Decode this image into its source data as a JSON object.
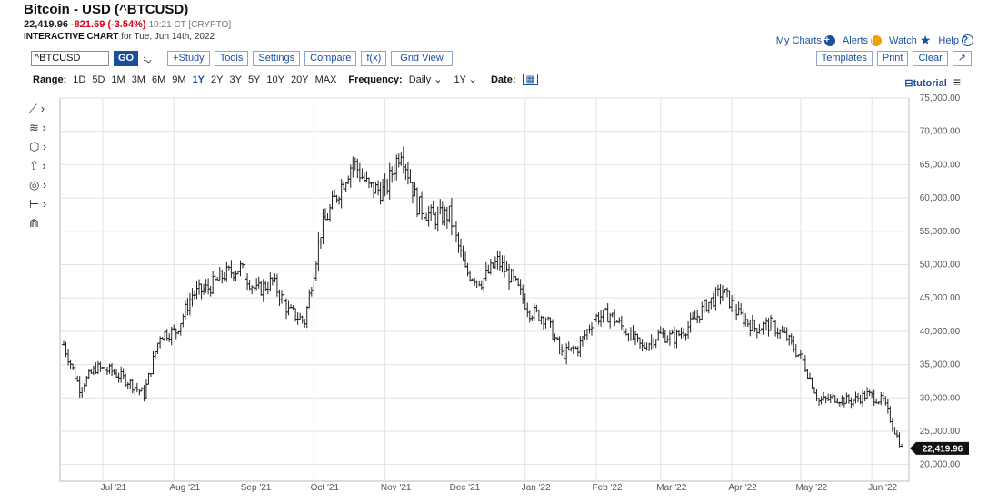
{
  "header": {
    "title": "Bitcoin - USD (^BTCUSD)",
    "price": "22,419.96",
    "change": "-821.69 (-3.54%)",
    "time": "10:21 CT [CRYPTO]",
    "subtitle_bold": "INTERACTIVE CHART",
    "subtitle_rest": "for Tue, Jun 14th, 2022"
  },
  "top_links": {
    "my_charts": "My Charts",
    "alerts": "Alerts",
    "watch": "Watch",
    "help": "Help"
  },
  "toolbar": {
    "symbol": "^BTCUSD",
    "go": "GO",
    "study": "+Study",
    "tools": "Tools",
    "settings": "Settings",
    "compare": "Compare",
    "fx": "f(x)",
    "grid": "Grid View",
    "templates": "Templates",
    "print": "Print",
    "clear": "Clear"
  },
  "range_bar": {
    "label": "Range:",
    "options": [
      "1D",
      "5D",
      "1M",
      "3M",
      "6M",
      "9M",
      "1Y",
      "2Y",
      "3Y",
      "5Y",
      "10Y",
      "20Y",
      "MAX"
    ],
    "active": "1Y",
    "freq_label": "Frequency:",
    "freq": "Daily",
    "period": "1Y",
    "date_label": "Date:",
    "tutorial": "tutorial"
  },
  "colors": {
    "accent": "#1a4fa0",
    "down": "#d8001c",
    "bar": "#222222",
    "grid": "#e2e2e2"
  },
  "chart_data": {
    "type": "ohlc-bar",
    "ylim": [
      17500,
      75000
    ],
    "yticks": [
      20000,
      25000,
      30000,
      35000,
      40000,
      45000,
      50000,
      55000,
      60000,
      65000,
      70000,
      75000
    ],
    "ytick_labels": [
      "20,000.00",
      "25,000.00",
      "30,000.00",
      "35,000.00",
      "40,000.00",
      "45,000.00",
      "50,000.00",
      "55,000.00",
      "60,000.00",
      "65,000.00",
      "70,000.00",
      "75,000.00"
    ],
    "x_start": "2021-06-14",
    "x_end": "2022-06-14",
    "xtick_labels": [
      "Jul '21",
      "Aug '21",
      "Sep '21",
      "Oct '21",
      "Nov '21",
      "Dec '21",
      "Jan '22",
      "Feb '22",
      "Mar '22",
      "Apr '22",
      "May '22",
      "Jun '22"
    ],
    "xtick_dates": [
      "2021-07-01",
      "2021-08-01",
      "2021-09-01",
      "2021-10-01",
      "2021-11-01",
      "2021-12-01",
      "2022-01-01",
      "2022-02-01",
      "2022-03-01",
      "2022-04-01",
      "2022-05-01",
      "2022-06-01"
    ],
    "last_price_label": "22,419.96",
    "last_price": 22419.96,
    "closes": [
      {
        "d": "2021-06-14",
        "c": 38000
      },
      {
        "d": "2021-06-21",
        "c": 31500
      },
      {
        "d": "2021-06-28",
        "c": 34500
      },
      {
        "d": "2021-07-05",
        "c": 34000
      },
      {
        "d": "2021-07-12",
        "c": 32500
      },
      {
        "d": "2021-07-19",
        "c": 30500
      },
      {
        "d": "2021-07-26",
        "c": 39500
      },
      {
        "d": "2021-08-02",
        "c": 40000
      },
      {
        "d": "2021-08-09",
        "c": 45500
      },
      {
        "d": "2021-08-16",
        "c": 46500
      },
      {
        "d": "2021-08-23",
        "c": 48500
      },
      {
        "d": "2021-08-30",
        "c": 49500
      },
      {
        "d": "2021-09-06",
        "c": 46000
      },
      {
        "d": "2021-09-13",
        "c": 47500
      },
      {
        "d": "2021-09-20",
        "c": 43000
      },
      {
        "d": "2021-09-27",
        "c": 41500
      },
      {
        "d": "2021-10-04",
        "c": 55000
      },
      {
        "d": "2021-10-11",
        "c": 60500
      },
      {
        "d": "2021-10-18",
        "c": 65500
      },
      {
        "d": "2021-10-25",
        "c": 61500
      },
      {
        "d": "2021-11-01",
        "c": 61000
      },
      {
        "d": "2021-11-08",
        "c": 67500
      },
      {
        "d": "2021-11-15",
        "c": 59000
      },
      {
        "d": "2021-11-22",
        "c": 57000
      },
      {
        "d": "2021-11-29",
        "c": 57500
      },
      {
        "d": "2021-12-06",
        "c": 49000
      },
      {
        "d": "2021-12-13",
        "c": 47500
      },
      {
        "d": "2021-12-20",
        "c": 50500
      },
      {
        "d": "2021-12-27",
        "c": 47500
      },
      {
        "d": "2022-01-03",
        "c": 43000
      },
      {
        "d": "2022-01-10",
        "c": 42000
      },
      {
        "d": "2022-01-17",
        "c": 36500
      },
      {
        "d": "2022-01-24",
        "c": 37500
      },
      {
        "d": "2022-01-31",
        "c": 42000
      },
      {
        "d": "2022-02-07",
        "c": 42500
      },
      {
        "d": "2022-02-14",
        "c": 40000
      },
      {
        "d": "2022-02-21",
        "c": 37500
      },
      {
        "d": "2022-02-28",
        "c": 39500
      },
      {
        "d": "2022-03-07",
        "c": 39000
      },
      {
        "d": "2022-03-14",
        "c": 41000
      },
      {
        "d": "2022-03-21",
        "c": 44000
      },
      {
        "d": "2022-03-28",
        "c": 46000
      },
      {
        "d": "2022-04-04",
        "c": 42500
      },
      {
        "d": "2022-04-11",
        "c": 40500
      },
      {
        "d": "2022-04-18",
        "c": 41000
      },
      {
        "d": "2022-04-25",
        "c": 39000
      },
      {
        "d": "2022-05-02",
        "c": 35500
      },
      {
        "d": "2022-05-09",
        "c": 29500
      },
      {
        "d": "2022-05-16",
        "c": 30000
      },
      {
        "d": "2022-05-23",
        "c": 29500
      },
      {
        "d": "2022-05-30",
        "c": 30500
      },
      {
        "d": "2022-06-06",
        "c": 29500
      },
      {
        "d": "2022-06-14",
        "c": 22419.96
      }
    ]
  }
}
